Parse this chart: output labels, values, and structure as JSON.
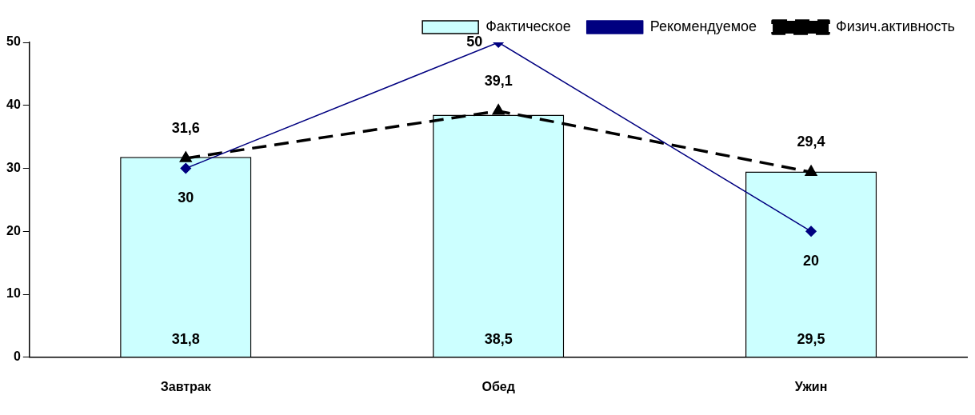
{
  "chart_data": {
    "type": "bar",
    "categories": [
      "Завтрак",
      "Обед",
      "Ужин"
    ],
    "series": [
      {
        "name": "Фактическое",
        "color": "#ccffff",
        "values": [
          31.8,
          38.5,
          29.5
        ],
        "value_labels": [
          "31,8",
          "38,5",
          "29,5"
        ]
      },
      {
        "name": "Рекомендуемое",
        "type": "line",
        "color": "#000080",
        "marker": "diamond",
        "line_style": "solid",
        "values": [
          30,
          50,
          20
        ],
        "value_labels": [
          "30",
          "50",
          "20"
        ]
      },
      {
        "name": "Физич.активность",
        "type": "line",
        "color": "#000000",
        "marker": "triangle",
        "line_style": "dashed",
        "values": [
          31.6,
          39.1,
          29.4
        ],
        "value_labels": [
          "31,6",
          "39,1",
          "29,4"
        ]
      }
    ],
    "ylim": [
      0,
      50
    ],
    "yticks": [
      0,
      10,
      20,
      30,
      40,
      50
    ],
    "grid": false,
    "legend": "top right"
  }
}
